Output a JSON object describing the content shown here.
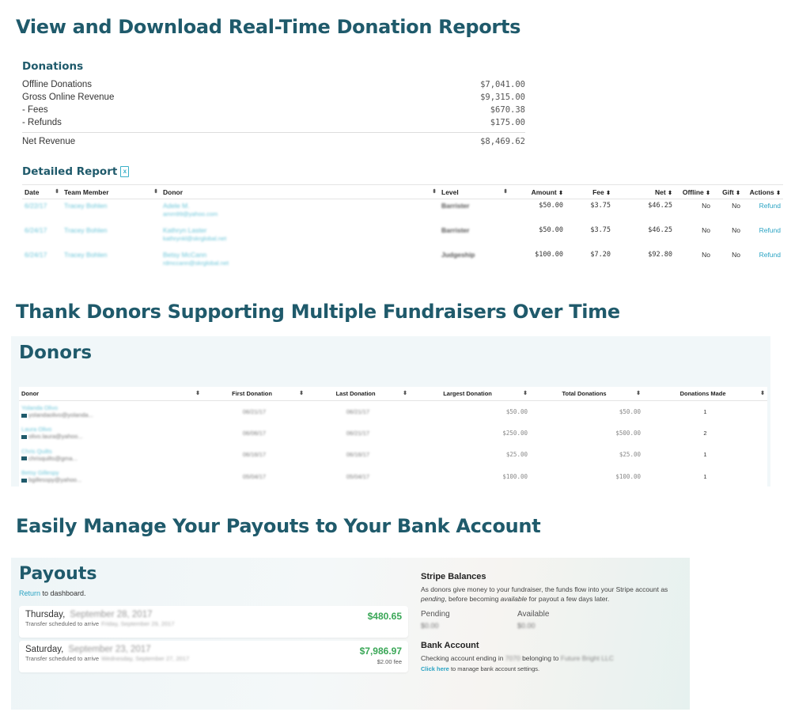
{
  "section1": {
    "heading": "View and Download Real-Time Donation Reports",
    "donations_title": "Donations",
    "summary": [
      {
        "label": "Offline Donations",
        "value": "$7,041.00"
      },
      {
        "label": "Gross Online Revenue",
        "value": "$9,315.00"
      },
      {
        "label": "- Fees",
        "value": "$670.38"
      },
      {
        "label": "- Refunds",
        "value": "$175.00"
      }
    ],
    "net": {
      "label": "Net Revenue",
      "value": "$8,469.62"
    },
    "detailed_title": "Detailed Report",
    "xls_icon": "excel-file-icon",
    "columns": [
      "Date",
      "Team Member",
      "Donor",
      "Level",
      "Amount",
      "Fee",
      "Net",
      "Offline",
      "Gift",
      "Actions"
    ],
    "rows": [
      {
        "date": "6/22/17",
        "member": "Tracey Bohlen",
        "donor": "Adele M.",
        "email": "amm99@yahoo.com",
        "level": "Barrister",
        "amount": "$50.00",
        "fee": "$3.75",
        "net": "$46.25",
        "offline": "No",
        "gift": "No",
        "action": "Refund"
      },
      {
        "date": "6/24/17",
        "member": "Tracey Bohlen",
        "donor": "Kathryn Laster",
        "email": "kathrynkl@skrglobal.net",
        "level": "Barrister",
        "amount": "$50.00",
        "fee": "$3.75",
        "net": "$46.25",
        "offline": "No",
        "gift": "No",
        "action": "Refund"
      },
      {
        "date": "6/24/17",
        "member": "Tracey Bohlen",
        "donor": "Betsy McCann",
        "email": "rdmccann@skrglobal.net",
        "level": "Judgeship",
        "amount": "$100.00",
        "fee": "$7.20",
        "net": "$92.80",
        "offline": "No",
        "gift": "No",
        "action": "Refund"
      }
    ]
  },
  "section2": {
    "heading": "Thank Donors Supporting Multiple Fundraisers Over Time",
    "panel_title": "Donors",
    "columns": [
      "Donor",
      "First Donation",
      "Last Donation",
      "Largest Donation",
      "Total Donations",
      "Donations Made"
    ],
    "rows": [
      {
        "name": "Yolanda Olivo",
        "email": "yolandaolivo@yolanda...",
        "first": "06/21/17",
        "last": "06/21/17",
        "largest": "$50.00",
        "total": "$50.00",
        "count": "1"
      },
      {
        "name": "Laura Olivo",
        "email": "olivo.laura@yahoo...",
        "first": "06/06/17",
        "last": "06/21/17",
        "largest": "$250.00",
        "total": "$500.00",
        "count": "2"
      },
      {
        "name": "Chris Quilts",
        "email": "chrisquilts@gma...",
        "first": "06/16/17",
        "last": "06/16/17",
        "largest": "$25.00",
        "total": "$25.00",
        "count": "1"
      },
      {
        "name": "Betsy Gillespy",
        "email": "bgillesspy@yahoo...",
        "first": "05/04/17",
        "last": "05/04/17",
        "largest": "$100.00",
        "total": "$100.00",
        "count": "1"
      }
    ]
  },
  "section3": {
    "heading": "Easily Manage Your Payouts to Your Bank Account",
    "panel_title": "Payouts",
    "return_link": "Return",
    "return_rest": " to dashboard.",
    "payouts": [
      {
        "day": "Thursday,",
        "date": "September 28, 2017",
        "sched": "Transfer scheduled to arrive",
        "sched_date": "Friday, September 29, 2017",
        "amount": "$480.65",
        "fee": ""
      },
      {
        "day": "Saturday,",
        "date": "September 23, 2017",
        "sched": "Transfer scheduled to arrive",
        "sched_date": "Wednesday, September 27, 2017",
        "amount": "$7,986.97",
        "fee": "$2.00 fee"
      }
    ],
    "stripe_title": "Stripe Balances",
    "stripe_text_1": "As donors give money to your fundraiser, the funds flow into your Stripe account as ",
    "stripe_pending_word": "pending",
    "stripe_text_2": ", before becoming ",
    "stripe_available_word": "available",
    "stripe_text_3": " for payout a few days later.",
    "pending_label": "Pending",
    "pending_value": "$0.00",
    "available_label": "Available",
    "available_value": "$0.00",
    "bank_title": "Bank Account",
    "bank_text_1": "Checking account ending in ",
    "bank_last4": "7070",
    "bank_text_2": " belonging to ",
    "bank_owner": "Future Bright LLC",
    "click_here": "Click here",
    "bank_manage": " to manage bank account settings."
  }
}
